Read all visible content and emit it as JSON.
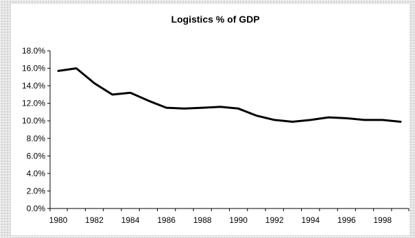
{
  "chart_data": {
    "type": "line",
    "title": "Logistics % of GDP",
    "xlabel": "",
    "ylabel": "",
    "ylim": [
      0,
      18
    ],
    "xlim": [
      1980,
      1999
    ],
    "y_tick_labels": [
      "0.0%",
      "2.0%",
      "4.0%",
      "6.0%",
      "8.0%",
      "10.0%",
      "12.0%",
      "14.0%",
      "16.0%",
      "18.0%"
    ],
    "x_tick_labels": [
      "1980",
      "1982",
      "1984",
      "1986",
      "1988",
      "1990",
      "1992",
      "1994",
      "1996",
      "1998"
    ],
    "grid": false,
    "legend": "none",
    "series": [
      {
        "color": "#000000",
        "x": [
          1980,
          1981,
          1982,
          1983,
          1984,
          1985,
          1986,
          1987,
          1988,
          1989,
          1990,
          1991,
          1992,
          1993,
          1994,
          1995,
          1996,
          1997,
          1998,
          1999
        ],
        "values": [
          15.7,
          16.0,
          14.3,
          13.0,
          13.2,
          12.3,
          11.5,
          11.4,
          11.5,
          11.6,
          11.4,
          10.6,
          10.1,
          9.9,
          10.1,
          10.4,
          10.3,
          10.1,
          10.1,
          9.9
        ]
      }
    ]
  }
}
